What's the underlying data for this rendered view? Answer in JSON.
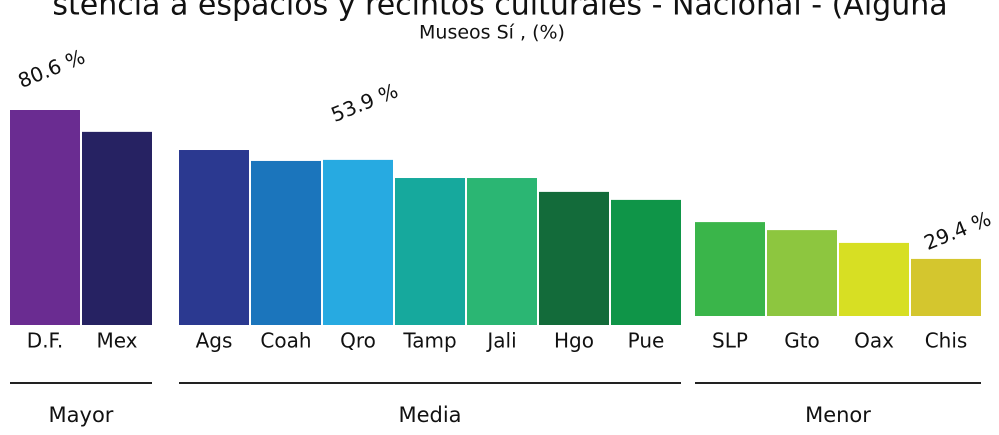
{
  "chart_data": {
    "type": "bar",
    "title": "stencia a espacios y recintos culturales - Nacional - (Alguna",
    "subtitle": "Museos    Sí , (%)",
    "groups": [
      {
        "name": "Mayor",
        "categories": [
          "D.F.",
          "Mex"
        ],
        "values": [
          80.6,
          72.4
        ],
        "colors": [
          "#6a2c91",
          "#262262"
        ]
      },
      {
        "name": "Media",
        "categories": [
          "Ags",
          "Coah",
          "Qro",
          "Tamp",
          "Jali",
          "Hgo",
          "Pue"
        ],
        "values": [
          65.6,
          61.5,
          61.9,
          55.1,
          55.1,
          49.9,
          46.9
        ],
        "colors": [
          "#2b3990",
          "#1b75bc",
          "#27aae1",
          "#16a99d",
          "#2bb673",
          "#136b3a",
          "#0f9548"
        ]
      },
      {
        "name": "Menor",
        "categories": [
          "SLP",
          "Gto",
          "Oax",
          "Chis"
        ],
        "values": [
          35.2,
          32.2,
          27.4,
          21.4
        ],
        "colors": [
          "#3ab54a",
          "#8dc63f",
          "#d7df23",
          "#d4c62e"
        ]
      }
    ],
    "annotations": [
      "80.6 %",
      "53.9 %",
      "29.4 %"
    ],
    "ylim": [
      0,
      100
    ]
  }
}
